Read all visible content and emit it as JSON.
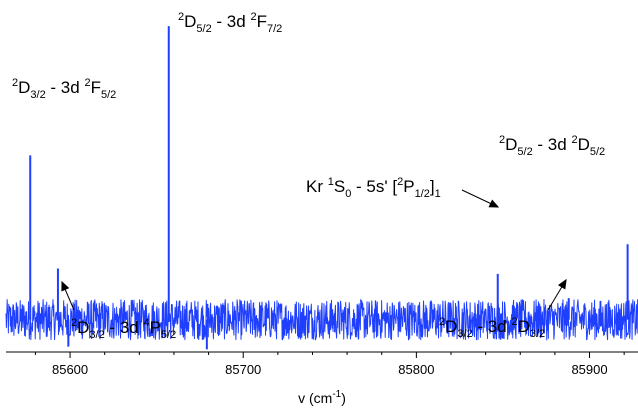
{
  "chart_data": {
    "type": "line",
    "xlabel_parts": {
      "pre": "v (cm",
      "sup": "-1",
      "post": ")"
    },
    "xlim": [
      85563,
      85928
    ],
    "ylim": [
      -1.2,
      11.5
    ],
    "x_ticks": [
      85600,
      85700,
      85800,
      85900
    ],
    "x_tick_labels": [
      "85600",
      "85700",
      "85800",
      "85900"
    ],
    "x_minor_step": 20,
    "line_color": "#1f3fff",
    "noise_amplitude": 0.75,
    "peaks": [
      {
        "x": 85577,
        "y": 6.1
      },
      {
        "x": 85593,
        "y": 1.9
      },
      {
        "x": 85657,
        "y": 10.9
      },
      {
        "x": 85847,
        "y": 1.7
      },
      {
        "x": 85888,
        "y": 0.8
      },
      {
        "x": 85922,
        "y": 2.8
      }
    ],
    "dips": [
      {
        "x": 85599,
        "y": -1.0
      },
      {
        "x": 85679,
        "y": -1.1
      }
    ],
    "annotations": [
      {
        "parts": [
          {
            "t": "2",
            "k": "sup"
          },
          {
            "t": "D",
            "k": ""
          },
          {
            "t": "3/2",
            "k": "sub"
          },
          {
            "t": " - 3d ",
            "k": ""
          },
          {
            "t": "2",
            "k": "sup"
          },
          {
            "t": "F",
            "k": ""
          },
          {
            "t": "5/2",
            "k": "sub"
          }
        ]
      },
      {
        "parts": [
          {
            "t": "2",
            "k": "sup"
          },
          {
            "t": "D",
            "k": ""
          },
          {
            "t": "5/2",
            "k": "sub"
          },
          {
            "t": " - 3d ",
            "k": ""
          },
          {
            "t": "2",
            "k": "sup"
          },
          {
            "t": "F",
            "k": ""
          },
          {
            "t": "7/2",
            "k": "sub"
          }
        ]
      },
      {
        "parts": [
          {
            "t": "2",
            "k": "sup"
          },
          {
            "t": "D",
            "k": ""
          },
          {
            "t": "5/2",
            "k": "sub"
          },
          {
            "t": " - 3d ",
            "k": ""
          },
          {
            "t": "2",
            "k": "sup"
          },
          {
            "t": "D",
            "k": ""
          },
          {
            "t": "5/2",
            "k": "sub"
          }
        ]
      },
      {
        "parts": [
          {
            "t": "Kr ",
            "k": ""
          },
          {
            "t": "1",
            "k": "sup"
          },
          {
            "t": "S",
            "k": ""
          },
          {
            "t": "0",
            "k": "sub"
          },
          {
            "t": " - 5s' [",
            "k": ""
          },
          {
            "t": "2",
            "k": "sup"
          },
          {
            "t": "P",
            "k": ""
          },
          {
            "t": "1/2",
            "k": "sub"
          },
          {
            "t": "]",
            "k": ""
          },
          {
            "t": "1",
            "k": "sub"
          }
        ]
      },
      {
        "parts": [
          {
            "t": "2",
            "k": "sup"
          },
          {
            "t": "D",
            "k": ""
          },
          {
            "t": "3/2",
            "k": "sub"
          },
          {
            "t": " - 3d ",
            "k": ""
          },
          {
            "t": "4",
            "k": "sup"
          },
          {
            "t": "P",
            "k": ""
          },
          {
            "t": "5/2",
            "k": "sub"
          }
        ]
      },
      {
        "parts": [
          {
            "t": "2",
            "k": "sup"
          },
          {
            "t": "D",
            "k": ""
          },
          {
            "t": "3/2",
            "k": "sub"
          },
          {
            "t": " - 3d ",
            "k": ""
          },
          {
            "t": "2",
            "k": "sup"
          },
          {
            "t": "D",
            "k": ""
          },
          {
            "t": "3/2",
            "k": "sub"
          }
        ]
      }
    ]
  }
}
